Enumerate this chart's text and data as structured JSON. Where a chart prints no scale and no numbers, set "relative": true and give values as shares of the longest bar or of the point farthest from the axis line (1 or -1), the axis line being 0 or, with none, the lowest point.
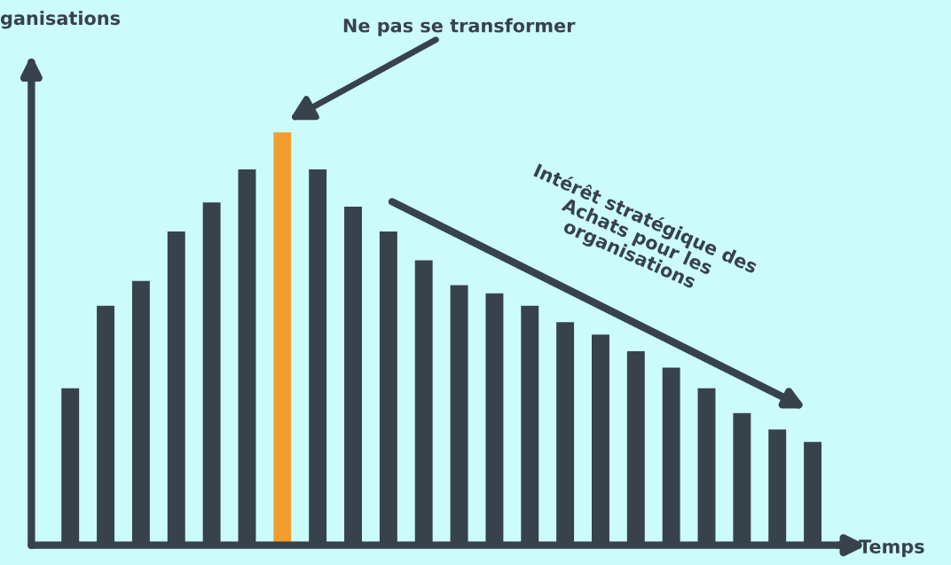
{
  "chart_data": {
    "type": "bar",
    "relative": true,
    "categories": [
      null,
      null,
      null,
      null,
      null,
      null,
      null,
      null,
      null,
      null,
      null,
      null,
      null,
      null,
      null,
      null,
      null,
      null,
      null,
      null,
      null,
      null
    ],
    "values": [
      0.38,
      0.58,
      0.64,
      0.76,
      0.83,
      0.91,
      1,
      0.91,
      0.82,
      0.76,
      0.69,
      0.63,
      0.61,
      0.58,
      0.54,
      0.51,
      0.47,
      0.43,
      0.38,
      0.32,
      0.28,
      0.25
    ],
    "colors": [
      "#37424a",
      "#37424a",
      "#37424a",
      "#37424a",
      "#37424a",
      "#37424a",
      "#f29e2e",
      "#37424a",
      "#37424a",
      "#37424a",
      "#37424a",
      "#37424a",
      "#37424a",
      "#37424a",
      "#37424a",
      "#37424a",
      "#37424a",
      "#37424a",
      "#37424a",
      "#37424a",
      "#37424a",
      "#37424a"
    ],
    "xlabel": "Temps",
    "annotations": [
      "Ne pas se transformer",
      "Intérêt stratégique des\nAchats pour les\norganisations",
      "ganisations"
    ],
    "grid": false,
    "legend": false
  }
}
